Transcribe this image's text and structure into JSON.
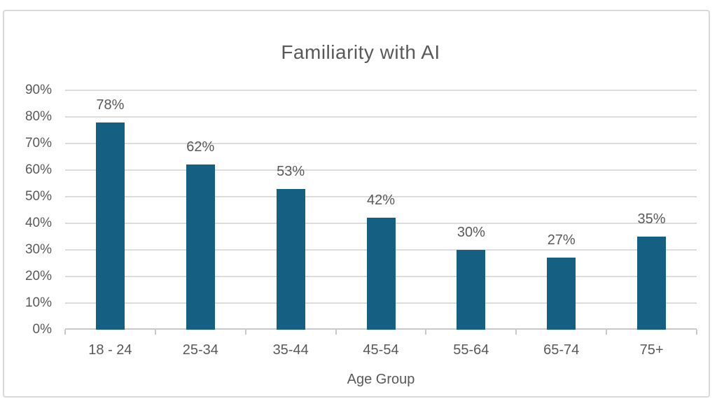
{
  "chart_data": {
    "type": "bar",
    "title": "Familiarity with AI",
    "xlabel": "Age Group",
    "ylabel": "",
    "categories": [
      "18 - 24",
      "25-34",
      "35-44",
      "45-54",
      "55-64",
      "65-74",
      "75+"
    ],
    "values": [
      78,
      62,
      53,
      42,
      30,
      27,
      35
    ],
    "data_labels": [
      "78%",
      "62%",
      "53%",
      "42%",
      "30%",
      "27%",
      "35%"
    ],
    "y_ticks": [
      "0%",
      "10%",
      "20%",
      "30%",
      "40%",
      "50%",
      "60%",
      "70%",
      "80%",
      "90%"
    ],
    "ylim": [
      0,
      90
    ],
    "y_tick_step": 10,
    "grid": true,
    "legend": "none",
    "colors": {
      "bar": "#156082",
      "gridline": "#DCDCDC",
      "axis_line": "#C9C9C9",
      "text": "#595959",
      "frame_border": "#D9D9D9",
      "background": "#FFFFFF"
    }
  }
}
